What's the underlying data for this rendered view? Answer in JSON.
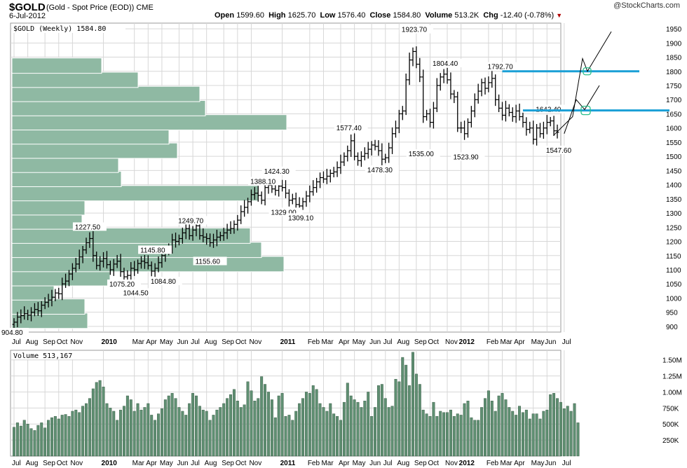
{
  "header": {
    "symbol": "$GOLD",
    "subtitle": "(Gold - Spot Price (EOD)) CME",
    "date": "6-Jul-2012",
    "brand": "@StockCharts.com",
    "open_label": "Open",
    "open": "1599.60",
    "high_label": "High",
    "high": "1625.70",
    "low_label": "Low",
    "low": "1576.40",
    "close_label": "Close",
    "close": "1584.80",
    "volume_label": "Volume",
    "volume": "513.2K",
    "chg_label": "Chg",
    "chg": "-12.40 (-0.78%)",
    "chg_arrow": "▼"
  },
  "price_legend": "$GOLD (Weekly) 1584.80",
  "volume_legend": "Volume 513,167",
  "colors": {
    "bars": "#000000",
    "volume_by_price": "#8fb9a3",
    "volume_bars": "#5f8f72",
    "resistance": "#1a9fd6",
    "grid": "#d7d7d7",
    "circle": "#2bbf8a"
  },
  "chart_data": {
    "type": "ohlc_bar_with_volume",
    "title": "$GOLD (Weekly) 1584.80",
    "x_ticks": [
      "Jul",
      "Aug",
      "Sep",
      "Oct",
      "Nov",
      "2010",
      "Mar",
      "Apr",
      "May",
      "Jun",
      "Jul",
      "Aug",
      "Sep",
      "Oct",
      "Nov",
      "2011",
      "Feb",
      "Mar",
      "Apr",
      "May",
      "Jun",
      "Jul",
      "Aug",
      "Sep",
      "Oct",
      "Nov",
      "2012",
      "Feb",
      "Mar",
      "Apr",
      "May",
      "Jun",
      "Jul"
    ],
    "x_tick_weeks": [
      0,
      4,
      9,
      13,
      17,
      26,
      35,
      39,
      43,
      48,
      52,
      56,
      61,
      65,
      69,
      78,
      86,
      90,
      95,
      99,
      104,
      108,
      112,
      117,
      121,
      126,
      130,
      138,
      142,
      146,
      151,
      155,
      160
    ],
    "bold_ticks": [
      "2010",
      "2011",
      "2012"
    ],
    "y_price_ticks": [
      900,
      950,
      1000,
      1050,
      1100,
      1150,
      1200,
      1250,
      1300,
      1350,
      1400,
      1450,
      1500,
      1550,
      1600,
      1650,
      1700,
      1750,
      1800,
      1850,
      1900,
      1950
    ],
    "y_price_range": [
      880,
      1970
    ],
    "y_volume_ticks": [
      "250K",
      "500K",
      "750K",
      "1.00M",
      "1.25M",
      "1.50M"
    ],
    "y_volume_tick_values": [
      250000,
      500000,
      750000,
      1000000,
      1250000,
      1500000
    ],
    "y_volume_range": [
      0,
      1650000
    ],
    "price_closes": [
      915,
      933,
      938,
      945,
      940,
      950,
      960,
      955,
      975,
      985,
      993,
      1003,
      1018,
      1015,
      1050,
      1060,
      1085,
      1105,
      1120,
      1145,
      1170,
      1195,
      1210,
      1150,
      1115,
      1130,
      1140,
      1118,
      1100,
      1120,
      1130,
      1093,
      1075,
      1080,
      1105,
      1100,
      1122,
      1130,
      1125,
      1115,
      1095,
      1105,
      1125,
      1150,
      1165,
      1175,
      1205,
      1200,
      1210,
      1230,
      1245,
      1220,
      1240,
      1255,
      1220,
      1215,
      1210,
      1195,
      1205,
      1215,
      1220,
      1230,
      1240,
      1245,
      1260,
      1275,
      1305,
      1320,
      1340,
      1365,
      1370,
      1362,
      1345,
      1390,
      1398,
      1385,
      1380,
      1395,
      1390,
      1370,
      1345,
      1350,
      1330,
      1325,
      1340,
      1360,
      1375,
      1390,
      1410,
      1425,
      1420,
      1430,
      1440,
      1445,
      1460,
      1480,
      1500,
      1520,
      1555,
      1500,
      1485,
      1500,
      1510,
      1525,
      1540,
      1535,
      1520,
      1490,
      1495,
      1530,
      1580,
      1600,
      1650,
      1660,
      1770,
      1840,
      1870,
      1825,
      1780,
      1640,
      1650,
      1620,
      1670,
      1750,
      1780,
      1790,
      1770,
      1720,
      1710,
      1600,
      1600,
      1580,
      1620,
      1660,
      1700,
      1730,
      1760,
      1740,
      1760,
      1775,
      1700,
      1670,
      1645,
      1670,
      1655,
      1640,
      1660,
      1640,
      1620,
      1595,
      1600,
      1560,
      1600,
      1580,
      1600,
      1620,
      1625,
      1590,
      1585
    ],
    "price_bar_ranges": {
      "lows": "close-25 approx",
      "highs": "close+25 approx"
    },
    "volume_values": [
      450000,
      520000,
      470000,
      560000,
      500000,
      430000,
      400000,
      480000,
      520000,
      440000,
      560000,
      600000,
      620000,
      580000,
      640000,
      650000,
      620000,
      700000,
      720000,
      680000,
      780000,
      820000,
      900000,
      1050000,
      1150000,
      1180000,
      1080000,
      820000,
      750000,
      700000,
      560000,
      720000,
      780000,
      940000,
      880000,
      700000,
      820000,
      720000,
      760000,
      820000,
      640000,
      560000,
      660000,
      740000,
      880000,
      940000,
      980000,
      900000,
      760000,
      700000,
      640000,
      820000,
      980000,
      940000,
      780000,
      720000,
      700000,
      560000,
      640000,
      720000,
      760000,
      820000,
      900000,
      960000,
      1040000,
      860000,
      760000,
      800000,
      1160000,
      1020000,
      860000,
      900000,
      1240000,
      1120000,
      1000000,
      880000,
      600000,
      940000,
      980000,
      620000,
      640000,
      560000,
      700000,
      820000,
      900000,
      1000000,
      980000,
      1100000,
      1040000,
      820000,
      760000,
      700000,
      820000,
      660000,
      620000,
      560000,
      840000,
      1140000,
      940000,
      880000,
      840000,
      760000,
      860000,
      1000000,
      620000,
      760000,
      1100000,
      1120000,
      900000,
      760000,
      780000,
      1200000,
      1160000,
      1540000,
      1420000,
      1100000,
      1620000,
      1280000,
      1120000,
      720000,
      660000,
      620000,
      840000,
      620000,
      700000,
      680000,
      680000,
      720000,
      620000,
      660000,
      640000,
      820000,
      860000,
      600000,
      560000,
      560000,
      760000,
      900000,
      1020000,
      860000,
      700000,
      940000,
      980000,
      880000,
      760000,
      700000,
      640000,
      780000,
      680000,
      720000,
      580000,
      660000,
      660000,
      580000,
      700000,
      720000,
      960000,
      980000,
      900000,
      840000,
      740000,
      780000,
      700000,
      820000,
      520000
    ],
    "annotations": [
      {
        "text": "904.80",
        "week": 0,
        "price": 904.8,
        "pos": "below"
      },
      {
        "text": "1227.50",
        "week": 22,
        "price": 1227.5,
        "pos": "above"
      },
      {
        "text": "1075.20",
        "week": 32,
        "price": 1075.2,
        "pos": "below"
      },
      {
        "text": "1044.50",
        "week": 36,
        "price": 1044.5,
        "pos": "below"
      },
      {
        "text": "1145.80",
        "week": 41,
        "price": 1145.8,
        "pos": "above"
      },
      {
        "text": "1084.80",
        "week": 44,
        "price": 1084.8,
        "pos": "below"
      },
      {
        "text": "1249.70",
        "week": 52,
        "price": 1249.7,
        "pos": "above"
      },
      {
        "text": "1155.60",
        "week": 57,
        "price": 1155.6,
        "pos": "below"
      },
      {
        "text": "1388.10",
        "week": 73,
        "price": 1388.1,
        "pos": "above"
      },
      {
        "text": "1424.30",
        "week": 77,
        "price": 1424.3,
        "pos": "above"
      },
      {
        "text": "1329.00",
        "week": 79,
        "price": 1329.0,
        "pos": "below"
      },
      {
        "text": "1309.10",
        "week": 84,
        "price": 1309.1,
        "pos": "below"
      },
      {
        "text": "1577.40",
        "week": 98,
        "price": 1577.4,
        "pos": "above"
      },
      {
        "text": "1478.30",
        "week": 107,
        "price": 1478.3,
        "pos": "below"
      },
      {
        "text": "1923.70",
        "week": 117,
        "price": 1923.7,
        "pos": "above"
      },
      {
        "text": "1535.00",
        "week": 119,
        "price": 1535.0,
        "pos": "below"
      },
      {
        "text": "1804.40",
        "week": 126,
        "price": 1804.4,
        "pos": "above"
      },
      {
        "text": "1523.90",
        "week": 132,
        "price": 1523.9,
        "pos": "below"
      },
      {
        "text": "1792.70",
        "week": 142,
        "price": 1792.7,
        "pos": "above"
      },
      {
        "text": "1642.40",
        "week": 156,
        "price": 1642.4,
        "pos": "above"
      },
      {
        "text": "1547.60",
        "week": 159,
        "price": 1547.6,
        "pos": "below"
      }
    ],
    "volume_by_price": [
      {
        "low": 900,
        "high": 940,
        "volume": 0.27
      },
      {
        "low": 950,
        "high": 990,
        "volume": 0.26
      },
      {
        "low": 1000,
        "high": 1040,
        "volume": 0.15
      },
      {
        "low": 1050,
        "high": 1090,
        "volume": 0.35
      },
      {
        "low": 1100,
        "high": 1140,
        "volume": 0.97
      },
      {
        "low": 1150,
        "high": 1190,
        "volume": 0.89
      },
      {
        "low": 1200,
        "high": 1240,
        "volume": 0.85
      },
      {
        "low": 1250,
        "high": 1290,
        "volume": 0.25
      },
      {
        "low": 1300,
        "high": 1340,
        "volume": 0.26
      },
      {
        "low": 1350,
        "high": 1390,
        "volume": 0.88
      },
      {
        "low": 1400,
        "high": 1440,
        "volume": 0.39
      },
      {
        "low": 1450,
        "high": 1490,
        "volume": 0.38
      },
      {
        "low": 1500,
        "high": 1540,
        "volume": 0.59
      },
      {
        "low": 1550,
        "high": 1590,
        "volume": 0.56
      },
      {
        "low": 1600,
        "high": 1640,
        "volume": 0.98
      },
      {
        "low": 1650,
        "high": 1690,
        "volume": 0.69
      },
      {
        "low": 1700,
        "high": 1740,
        "volume": 0.67
      },
      {
        "low": 1750,
        "high": 1790,
        "volume": 0.45
      },
      {
        "low": 1800,
        "high": 1840,
        "volume": 0.32
      }
    ],
    "resistance_lines": [
      1800,
      1662
    ],
    "grid": true
  }
}
